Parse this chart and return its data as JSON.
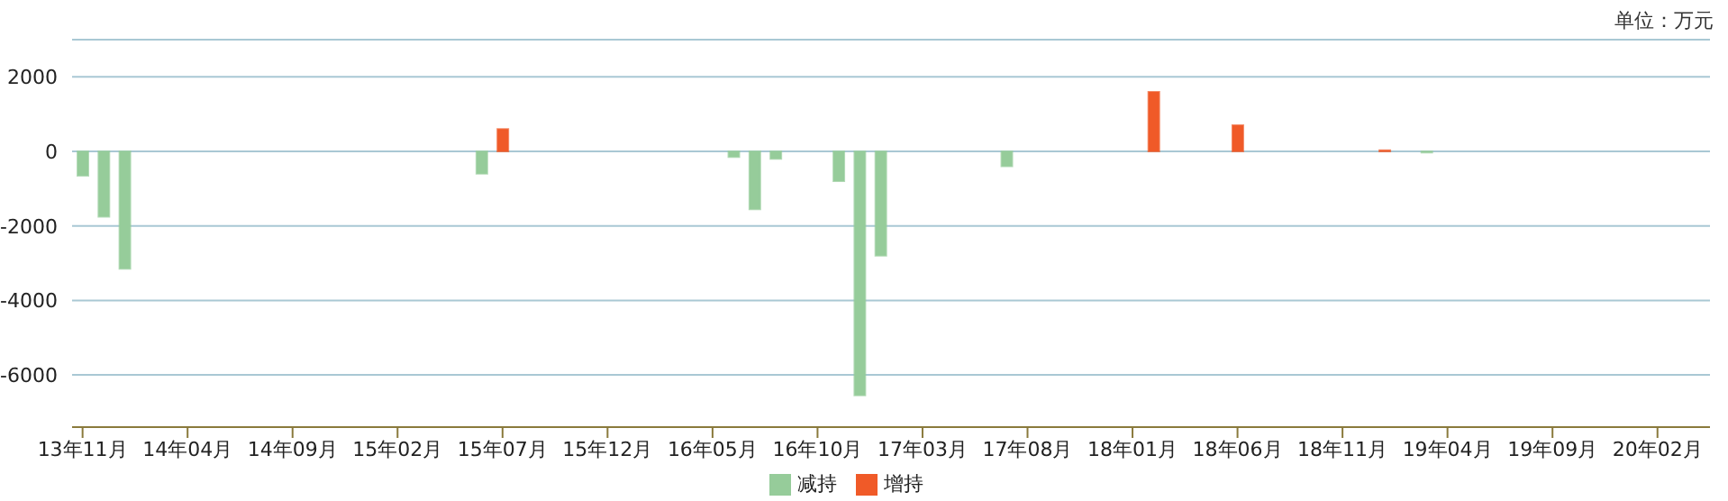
{
  "chart_data": {
    "type": "bar",
    "stacked": true,
    "categories": [
      "13年11月",
      null,
      null,
      null,
      null,
      "14年04月",
      null,
      null,
      null,
      null,
      "14年09月",
      null,
      null,
      null,
      null,
      "15年02月",
      null,
      null,
      null,
      null,
      "15年07月",
      null,
      null,
      null,
      null,
      "15年12月",
      null,
      null,
      null,
      null,
      "16年05月",
      null,
      null,
      null,
      null,
      "16年10月",
      null,
      null,
      null,
      null,
      "17年03月",
      null,
      null,
      null,
      null,
      "17年08月",
      null,
      null,
      null,
      null,
      "18年01月",
      null,
      null,
      null,
      null,
      "18年06月",
      null,
      null,
      null,
      null,
      "18年11月",
      null,
      null,
      null,
      null,
      "19年04月",
      null,
      null,
      null,
      null,
      "19年09月",
      null,
      null,
      null,
      null,
      "20年02月",
      null,
      null
    ],
    "series": [
      {
        "name": "增持",
        "color": "#f05a28",
        "values": [
          null,
          null,
          null,
          null,
          null,
          null,
          null,
          null,
          null,
          null,
          null,
          null,
          null,
          null,
          null,
          null,
          null,
          null,
          null,
          null,
          600,
          null,
          null,
          null,
          null,
          null,
          null,
          null,
          null,
          null,
          null,
          null,
          null,
          null,
          null,
          null,
          null,
          null,
          null,
          null,
          null,
          null,
          null,
          null,
          null,
          null,
          null,
          null,
          null,
          null,
          null,
          1600,
          null,
          null,
          null,
          700,
          null,
          null,
          null,
          null,
          null,
          null,
          30,
          null,
          null,
          null,
          null,
          null,
          null,
          null,
          null,
          null,
          null,
          null,
          null,
          null,
          null,
          null
        ]
      },
      {
        "name": "减持",
        "color": "#96cc9a",
        "values": [
          -650,
          -1750,
          -3150,
          null,
          null,
          null,
          null,
          null,
          null,
          null,
          null,
          null,
          null,
          null,
          null,
          null,
          null,
          null,
          null,
          -600,
          null,
          null,
          null,
          null,
          null,
          null,
          null,
          null,
          null,
          null,
          null,
          -150,
          -1550,
          -200,
          null,
          null,
          -800,
          -6550,
          -2800,
          null,
          null,
          null,
          null,
          null,
          -400,
          null,
          null,
          null,
          null,
          null,
          null,
          null,
          null,
          null,
          null,
          null,
          null,
          null,
          null,
          null,
          null,
          null,
          null,
          null,
          -30,
          null,
          null,
          null,
          null,
          null,
          null,
          null,
          null,
          null,
          null,
          null,
          null,
          null
        ]
      }
    ],
    "ylim": [
      -7400,
      3000
    ],
    "yticks": [
      -6000,
      -4000,
      -2000,
      0,
      2000
    ],
    "grid": "y",
    "legend": "bottom",
    "annotations": [
      "单位：万元"
    ]
  }
}
